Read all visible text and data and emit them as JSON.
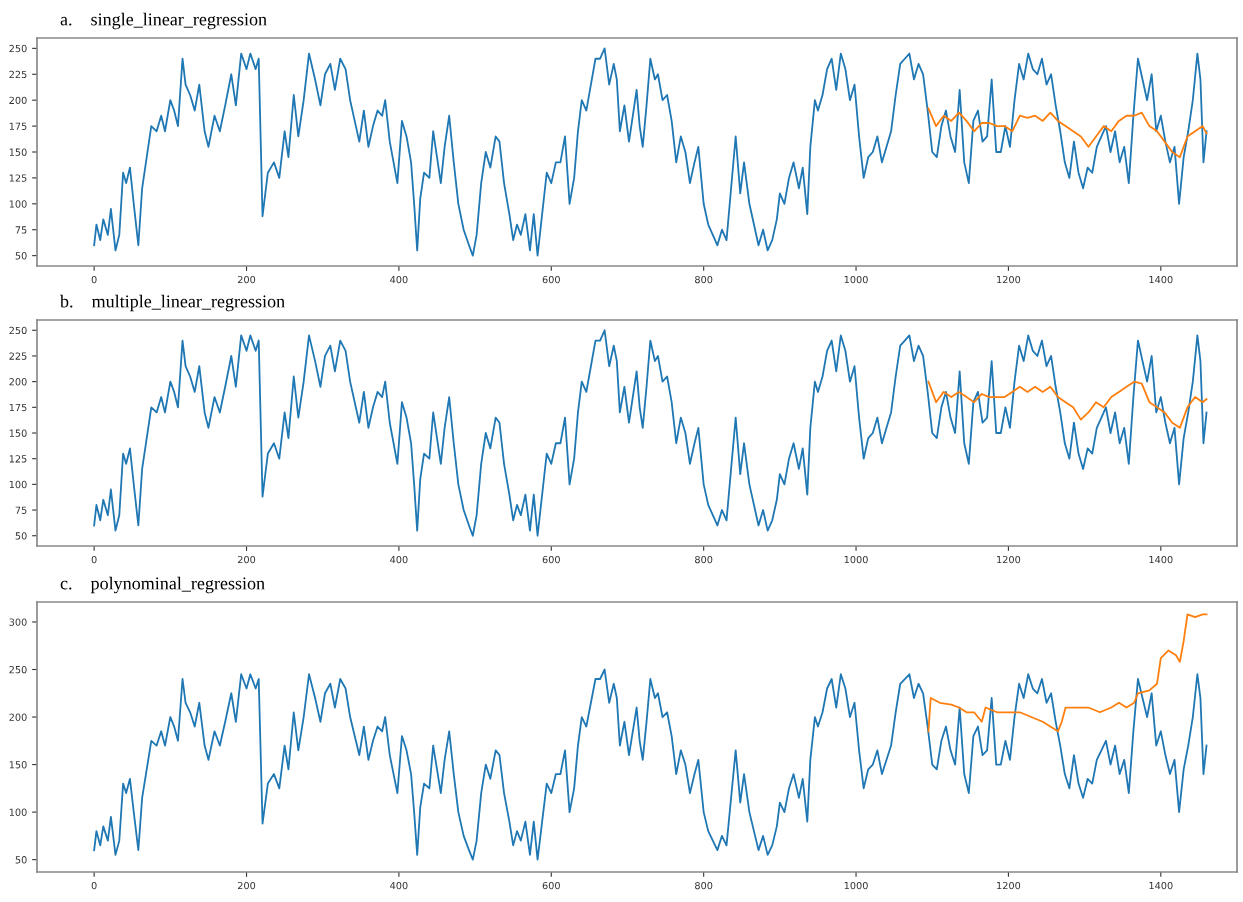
{
  "chart_data": [
    {
      "type": "line",
      "title": "a.    single_linear_regression",
      "xlim": [
        -75,
        1500
      ],
      "xticks": [
        0,
        200,
        400,
        600,
        800,
        1000,
        1200,
        1400
      ],
      "ylim": [
        40,
        260
      ],
      "yticks": [
        50,
        75,
        100,
        125,
        150,
        175,
        200,
        225,
        250
      ],
      "grid": false,
      "legend": false,
      "marker": "none",
      "line_style": "solid",
      "series": [
        {
          "color": "#1f77b4",
          "x": [
            0,
            3,
            8,
            12,
            18,
            22,
            28,
            33,
            38,
            42,
            47,
            52,
            58,
            63,
            68,
            75,
            82,
            88,
            93,
            100,
            105,
            110,
            116,
            120,
            126,
            132,
            138,
            145,
            150,
            158,
            165,
            172,
            180,
            186,
            193,
            200,
            205,
            212,
            216,
            221,
            228,
            236,
            243,
            250,
            255,
            262,
            268,
            275,
            282,
            290,
            297,
            303,
            310,
            316,
            323,
            330,
            336,
            342,
            348,
            354,
            360,
            366,
            372,
            378,
            382,
            388,
            393,
            398,
            404,
            410,
            416,
            420,
            424,
            428,
            433,
            440,
            445,
            450,
            455,
            460,
            466,
            472,
            478,
            485,
            492,
            497,
            502,
            508,
            514,
            520,
            527,
            532,
            538,
            545,
            550,
            555,
            560,
            566,
            572,
            577,
            582,
            588,
            594,
            600,
            606,
            612,
            618,
            624,
            630,
            635,
            640,
            646,
            652,
            658,
            664,
            670,
            676,
            682,
            686,
            690,
            696,
            702,
            708,
            712,
            716,
            720,
            725,
            730,
            736,
            740,
            746,
            752,
            758,
            764,
            770,
            776,
            782,
            788,
            793,
            800,
            806,
            812,
            818,
            824,
            830,
            836,
            842,
            848,
            853,
            860,
            866,
            872,
            878,
            884,
            890,
            896,
            900,
            906,
            912,
            918,
            925,
            930,
            936,
            940,
            946,
            950,
            956,
            962,
            968,
            974,
            980,
            986,
            992,
            998,
            1004,
            1010,
            1016,
            1022,
            1028,
            1034,
            1040,
            1046,
            1052,
            1058,
            1064,
            1070,
            1076,
            1082,
            1088,
            1094,
            1100,
            1106,
            1112,
            1118,
            1124,
            1130,
            1136,
            1142,
            1148,
            1154,
            1160,
            1166,
            1172,
            1178,
            1184,
            1190,
            1196,
            1202,
            1208,
            1214,
            1220,
            1226,
            1232,
            1238,
            1244,
            1250,
            1256,
            1262,
            1268,
            1274,
            1280,
            1286,
            1292,
            1298,
            1304,
            1310,
            1316,
            1322,
            1328,
            1334,
            1340,
            1346,
            1352,
            1358,
            1364,
            1370,
            1376,
            1382,
            1388,
            1394,
            1400,
            1406,
            1412,
            1418,
            1424,
            1430,
            1436,
            1442,
            1448,
            1452,
            1456,
            1460
          ],
          "values": [
            60,
            80,
            65,
            85,
            70,
            95,
            55,
            70,
            130,
            120,
            135,
            100,
            60,
            115,
            140,
            175,
            170,
            185,
            170,
            200,
            190,
            175,
            240,
            215,
            205,
            190,
            215,
            170,
            155,
            185,
            170,
            195,
            225,
            195,
            245,
            230,
            245,
            230,
            240,
            88,
            130,
            140,
            125,
            170,
            145,
            205,
            165,
            200,
            245,
            220,
            195,
            225,
            235,
            210,
            240,
            230,
            200,
            180,
            160,
            190,
            155,
            175,
            190,
            185,
            200,
            160,
            140,
            120,
            180,
            165,
            140,
            100,
            55,
            105,
            130,
            125,
            170,
            145,
            120,
            155,
            185,
            140,
            100,
            75,
            60,
            50,
            70,
            120,
            150,
            135,
            165,
            160,
            120,
            90,
            65,
            80,
            70,
            90,
            55,
            90,
            50,
            90,
            130,
            120,
            140,
            140,
            165,
            100,
            125,
            170,
            200,
            190,
            215,
            240,
            240,
            250,
            215,
            235,
            220,
            170,
            195,
            160,
            190,
            210,
            175,
            155,
            195,
            240,
            220,
            225,
            200,
            205,
            180,
            140,
            165,
            150,
            120,
            140,
            155,
            100,
            80,
            70,
            60,
            75,
            65,
            115,
            165,
            110,
            140,
            100,
            80,
            60,
            75,
            55,
            65,
            85,
            110,
            100,
            125,
            140,
            115,
            135,
            90,
            155,
            200,
            190,
            205,
            230,
            240,
            210,
            245,
            230,
            200,
            215,
            165,
            125,
            145,
            150,
            165,
            140,
            155,
            170,
            205,
            235,
            240,
            245,
            220,
            235,
            225,
            190,
            150,
            145,
            175,
            190,
            165,
            150,
            210,
            140,
            120,
            180,
            190,
            160,
            165,
            220,
            150,
            150,
            175,
            155,
            200,
            235,
            220,
            245,
            230,
            225,
            240,
            215,
            225,
            195,
            170,
            140,
            125,
            160,
            130,
            115,
            135,
            130,
            155,
            165,
            175,
            150,
            170,
            140,
            155,
            120,
            185,
            240,
            220,
            200,
            225,
            170,
            185,
            160,
            140,
            155,
            100,
            145,
            170,
            200,
            245,
            220,
            140,
            170
          ]
        },
        {
          "color": "#ff7f0e",
          "x": [
            1095,
            1105,
            1115,
            1125,
            1135,
            1145,
            1155,
            1165,
            1175,
            1185,
            1195,
            1205,
            1215,
            1225,
            1235,
            1245,
            1255,
            1265,
            1275,
            1285,
            1295,
            1305,
            1315,
            1325,
            1335,
            1345,
            1355,
            1365,
            1375,
            1385,
            1395,
            1405,
            1415,
            1425,
            1435,
            1445,
            1455,
            1460
          ],
          "values": [
            192,
            175,
            185,
            180,
            188,
            180,
            170,
            178,
            178,
            175,
            175,
            170,
            185,
            183,
            185,
            180,
            188,
            180,
            175,
            170,
            165,
            155,
            165,
            175,
            170,
            180,
            185,
            185,
            188,
            175,
            170,
            160,
            150,
            145,
            165,
            170,
            175,
            168
          ]
        }
      ]
    },
    {
      "type": "line",
      "title": "b.    multiple_linear_regression",
      "xlim": [
        -75,
        1500
      ],
      "xticks": [
        0,
        200,
        400,
        600,
        800,
        1000,
        1200,
        1400
      ],
      "ylim": [
        40,
        260
      ],
      "yticks": [
        50,
        75,
        100,
        125,
        150,
        175,
        200,
        225,
        250
      ],
      "grid": false,
      "legend": false,
      "marker": "none",
      "line_style": "solid",
      "series": [
        {
          "color": "#1f77b4",
          "x": [
            0,
            3,
            8,
            12,
            18,
            22,
            28,
            33,
            38,
            42,
            47,
            52,
            58,
            63,
            68,
            75,
            82,
            88,
            93,
            100,
            105,
            110,
            116,
            120,
            126,
            132,
            138,
            145,
            150,
            158,
            165,
            172,
            180,
            186,
            193,
            200,
            205,
            212,
            216,
            221,
            228,
            236,
            243,
            250,
            255,
            262,
            268,
            275,
            282,
            290,
            297,
            303,
            310,
            316,
            323,
            330,
            336,
            342,
            348,
            354,
            360,
            366,
            372,
            378,
            382,
            388,
            393,
            398,
            404,
            410,
            416,
            420,
            424,
            428,
            433,
            440,
            445,
            450,
            455,
            460,
            466,
            472,
            478,
            485,
            492,
            497,
            502,
            508,
            514,
            520,
            527,
            532,
            538,
            545,
            550,
            555,
            560,
            566,
            572,
            577,
            582,
            588,
            594,
            600,
            606,
            612,
            618,
            624,
            630,
            635,
            640,
            646,
            652,
            658,
            664,
            670,
            676,
            682,
            686,
            690,
            696,
            702,
            708,
            712,
            716,
            720,
            725,
            730,
            736,
            740,
            746,
            752,
            758,
            764,
            770,
            776,
            782,
            788,
            793,
            800,
            806,
            812,
            818,
            824,
            830,
            836,
            842,
            848,
            853,
            860,
            866,
            872,
            878,
            884,
            890,
            896,
            900,
            906,
            912,
            918,
            925,
            930,
            936,
            940,
            946,
            950,
            956,
            962,
            968,
            974,
            980,
            986,
            992,
            998,
            1004,
            1010,
            1016,
            1022,
            1028,
            1034,
            1040,
            1046,
            1052,
            1058,
            1064,
            1070,
            1076,
            1082,
            1088,
            1094,
            1100,
            1106,
            1112,
            1118,
            1124,
            1130,
            1136,
            1142,
            1148,
            1154,
            1160,
            1166,
            1172,
            1178,
            1184,
            1190,
            1196,
            1202,
            1208,
            1214,
            1220,
            1226,
            1232,
            1238,
            1244,
            1250,
            1256,
            1262,
            1268,
            1274,
            1280,
            1286,
            1292,
            1298,
            1304,
            1310,
            1316,
            1322,
            1328,
            1334,
            1340,
            1346,
            1352,
            1358,
            1364,
            1370,
            1376,
            1382,
            1388,
            1394,
            1400,
            1406,
            1412,
            1418,
            1424,
            1430,
            1436,
            1442,
            1448,
            1452,
            1456,
            1460
          ],
          "values": [
            60,
            80,
            65,
            85,
            70,
            95,
            55,
            70,
            130,
            120,
            135,
            100,
            60,
            115,
            140,
            175,
            170,
            185,
            170,
            200,
            190,
            175,
            240,
            215,
            205,
            190,
            215,
            170,
            155,
            185,
            170,
            195,
            225,
            195,
            245,
            230,
            245,
            230,
            240,
            88,
            130,
            140,
            125,
            170,
            145,
            205,
            165,
            200,
            245,
            220,
            195,
            225,
            235,
            210,
            240,
            230,
            200,
            180,
            160,
            190,
            155,
            175,
            190,
            185,
            200,
            160,
            140,
            120,
            180,
            165,
            140,
            100,
            55,
            105,
            130,
            125,
            170,
            145,
            120,
            155,
            185,
            140,
            100,
            75,
            60,
            50,
            70,
            120,
            150,
            135,
            165,
            160,
            120,
            90,
            65,
            80,
            70,
            90,
            55,
            90,
            50,
            90,
            130,
            120,
            140,
            140,
            165,
            100,
            125,
            170,
            200,
            190,
            215,
            240,
            240,
            250,
            215,
            235,
            220,
            170,
            195,
            160,
            190,
            210,
            175,
            155,
            195,
            240,
            220,
            225,
            200,
            205,
            180,
            140,
            165,
            150,
            120,
            140,
            155,
            100,
            80,
            70,
            60,
            75,
            65,
            115,
            165,
            110,
            140,
            100,
            80,
            60,
            75,
            55,
            65,
            85,
            110,
            100,
            125,
            140,
            115,
            135,
            90,
            155,
            200,
            190,
            205,
            230,
            240,
            210,
            245,
            230,
            200,
            215,
            165,
            125,
            145,
            150,
            165,
            140,
            155,
            170,
            205,
            235,
            240,
            245,
            220,
            235,
            225,
            190,
            150,
            145,
            175,
            190,
            165,
            150,
            210,
            140,
            120,
            180,
            190,
            160,
            165,
            220,
            150,
            150,
            175,
            155,
            200,
            235,
            220,
            245,
            230,
            225,
            240,
            215,
            225,
            195,
            170,
            140,
            125,
            160,
            130,
            115,
            135,
            130,
            155,
            165,
            175,
            150,
            170,
            140,
            155,
            120,
            185,
            240,
            220,
            200,
            225,
            170,
            185,
            160,
            140,
            155,
            100,
            145,
            170,
            200,
            245,
            220,
            140,
            170
          ]
        },
        {
          "color": "#ff7f0e",
          "x": [
            1095,
            1105,
            1115,
            1125,
            1135,
            1145,
            1155,
            1165,
            1175,
            1185,
            1195,
            1205,
            1215,
            1225,
            1235,
            1245,
            1255,
            1265,
            1275,
            1285,
            1295,
            1305,
            1315,
            1325,
            1335,
            1345,
            1355,
            1365,
            1375,
            1385,
            1395,
            1405,
            1415,
            1425,
            1435,
            1445,
            1455,
            1460
          ],
          "values": [
            200,
            180,
            190,
            185,
            190,
            185,
            180,
            188,
            185,
            185,
            185,
            190,
            195,
            190,
            195,
            190,
            195,
            185,
            180,
            175,
            163,
            170,
            180,
            175,
            185,
            190,
            195,
            200,
            198,
            180,
            175,
            170,
            160,
            155,
            175,
            185,
            180,
            183
          ]
        }
      ]
    },
    {
      "type": "line",
      "title": "c.    polynominal_regression",
      "xlim": [
        -75,
        1500
      ],
      "xticks": [
        0,
        200,
        400,
        600,
        800,
        1000,
        1200,
        1400
      ],
      "ylim": [
        37,
        321
      ],
      "yticks": [
        50,
        100,
        150,
        200,
        250,
        300
      ],
      "grid": false,
      "legend": false,
      "marker": "none",
      "line_style": "solid",
      "series": [
        {
          "color": "#1f77b4",
          "x": [
            0,
            3,
            8,
            12,
            18,
            22,
            28,
            33,
            38,
            42,
            47,
            52,
            58,
            63,
            68,
            75,
            82,
            88,
            93,
            100,
            105,
            110,
            116,
            120,
            126,
            132,
            138,
            145,
            150,
            158,
            165,
            172,
            180,
            186,
            193,
            200,
            205,
            212,
            216,
            221,
            228,
            236,
            243,
            250,
            255,
            262,
            268,
            275,
            282,
            290,
            297,
            303,
            310,
            316,
            323,
            330,
            336,
            342,
            348,
            354,
            360,
            366,
            372,
            378,
            382,
            388,
            393,
            398,
            404,
            410,
            416,
            420,
            424,
            428,
            433,
            440,
            445,
            450,
            455,
            460,
            466,
            472,
            478,
            485,
            492,
            497,
            502,
            508,
            514,
            520,
            527,
            532,
            538,
            545,
            550,
            555,
            560,
            566,
            572,
            577,
            582,
            588,
            594,
            600,
            606,
            612,
            618,
            624,
            630,
            635,
            640,
            646,
            652,
            658,
            664,
            670,
            676,
            682,
            686,
            690,
            696,
            702,
            708,
            712,
            716,
            720,
            725,
            730,
            736,
            740,
            746,
            752,
            758,
            764,
            770,
            776,
            782,
            788,
            793,
            800,
            806,
            812,
            818,
            824,
            830,
            836,
            842,
            848,
            853,
            860,
            866,
            872,
            878,
            884,
            890,
            896,
            900,
            906,
            912,
            918,
            925,
            930,
            936,
            940,
            946,
            950,
            956,
            962,
            968,
            974,
            980,
            986,
            992,
            998,
            1004,
            1010,
            1016,
            1022,
            1028,
            1034,
            1040,
            1046,
            1052,
            1058,
            1064,
            1070,
            1076,
            1082,
            1088,
            1094,
            1100,
            1106,
            1112,
            1118,
            1124,
            1130,
            1136,
            1142,
            1148,
            1154,
            1160,
            1166,
            1172,
            1178,
            1184,
            1190,
            1196,
            1202,
            1208,
            1214,
            1220,
            1226,
            1232,
            1238,
            1244,
            1250,
            1256,
            1262,
            1268,
            1274,
            1280,
            1286,
            1292,
            1298,
            1304,
            1310,
            1316,
            1322,
            1328,
            1334,
            1340,
            1346,
            1352,
            1358,
            1364,
            1370,
            1376,
            1382,
            1388,
            1394,
            1400,
            1406,
            1412,
            1418,
            1424,
            1430,
            1436,
            1442,
            1448,
            1452,
            1456,
            1460
          ],
          "values": [
            60,
            80,
            65,
            85,
            70,
            95,
            55,
            70,
            130,
            120,
            135,
            100,
            60,
            115,
            140,
            175,
            170,
            185,
            170,
            200,
            190,
            175,
            240,
            215,
            205,
            190,
            215,
            170,
            155,
            185,
            170,
            195,
            225,
            195,
            245,
            230,
            245,
            230,
            240,
            88,
            130,
            140,
            125,
            170,
            145,
            205,
            165,
            200,
            245,
            220,
            195,
            225,
            235,
            210,
            240,
            230,
            200,
            180,
            160,
            190,
            155,
            175,
            190,
            185,
            200,
            160,
            140,
            120,
            180,
            165,
            140,
            100,
            55,
            105,
            130,
            125,
            170,
            145,
            120,
            155,
            185,
            140,
            100,
            75,
            60,
            50,
            70,
            120,
            150,
            135,
            165,
            160,
            120,
            90,
            65,
            80,
            70,
            90,
            55,
            90,
            50,
            90,
            130,
            120,
            140,
            140,
            165,
            100,
            125,
            170,
            200,
            190,
            215,
            240,
            240,
            250,
            215,
            235,
            220,
            170,
            195,
            160,
            190,
            210,
            175,
            155,
            195,
            240,
            220,
            225,
            200,
            205,
            180,
            140,
            165,
            150,
            120,
            140,
            155,
            100,
            80,
            70,
            60,
            75,
            65,
            115,
            165,
            110,
            140,
            100,
            80,
            60,
            75,
            55,
            65,
            85,
            110,
            100,
            125,
            140,
            115,
            135,
            90,
            155,
            200,
            190,
            205,
            230,
            240,
            210,
            245,
            230,
            200,
            215,
            165,
            125,
            145,
            150,
            165,
            140,
            155,
            170,
            205,
            235,
            240,
            245,
            220,
            235,
            225,
            190,
            150,
            145,
            175,
            190,
            165,
            150,
            210,
            140,
            120,
            180,
            190,
            160,
            165,
            220,
            150,
            150,
            175,
            155,
            200,
            235,
            220,
            245,
            230,
            225,
            240,
            215,
            225,
            195,
            170,
            140,
            125,
            160,
            130,
            115,
            135,
            130,
            155,
            165,
            175,
            150,
            170,
            140,
            155,
            120,
            185,
            240,
            220,
            200,
            225,
            170,
            185,
            160,
            140,
            155,
            100,
            145,
            170,
            200,
            245,
            220,
            140,
            170
          ]
        },
        {
          "color": "#ff7f0e",
          "x": [
            1095,
            1098,
            1110,
            1125,
            1135,
            1145,
            1155,
            1165,
            1170,
            1185,
            1200,
            1215,
            1230,
            1245,
            1255,
            1265,
            1270,
            1275,
            1290,
            1305,
            1320,
            1335,
            1345,
            1355,
            1365,
            1370,
            1385,
            1395,
            1400,
            1410,
            1420,
            1425,
            1430,
            1435,
            1445,
            1455,
            1460
          ],
          "values": [
            185,
            220,
            215,
            213,
            210,
            205,
            205,
            195,
            210,
            205,
            205,
            205,
            200,
            195,
            190,
            185,
            195,
            210,
            210,
            210,
            205,
            210,
            215,
            210,
            215,
            225,
            228,
            235,
            262,
            270,
            265,
            258,
            280,
            308,
            305,
            308,
            308
          ]
        }
      ]
    }
  ]
}
